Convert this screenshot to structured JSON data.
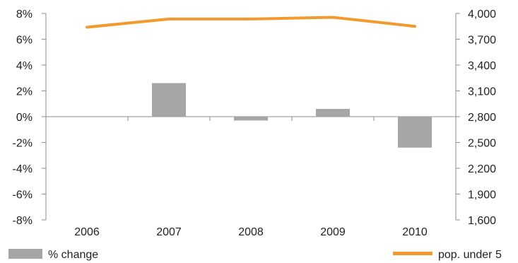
{
  "chart_data": {
    "type": "bar+line",
    "categories": [
      "2006",
      "2007",
      "2008",
      "2009",
      "2010"
    ],
    "series": [
      {
        "name": "% change",
        "type": "bar",
        "axis": "left",
        "values": [
          0,
          2.6,
          -0.3,
          0.6,
          -2.4
        ],
        "color": "#a6a6a6"
      },
      {
        "name": "pop. under 5",
        "type": "line",
        "axis": "right",
        "values": [
          3840,
          3935,
          3935,
          3955,
          3850
        ],
        "color": "#f39a2e"
      }
    ],
    "y_left": {
      "range": [
        -8,
        8
      ],
      "ticks": [
        8,
        6,
        4,
        2,
        0,
        -2,
        -4,
        -6,
        -8
      ],
      "tick_labels": [
        "8%",
        "6%",
        "4%",
        "2%",
        "0%",
        "-2%",
        "-4%",
        "-6%",
        "-8%"
      ]
    },
    "y_right": {
      "range": [
        1600,
        4000
      ],
      "ticks": [
        4000,
        3700,
        3400,
        3100,
        2800,
        2500,
        2200,
        1900,
        1600
      ],
      "tick_labels": [
        "4,000",
        "3,700",
        "3,400",
        "3,100",
        "2,800",
        "2,500",
        "2,200",
        "1,900",
        "1,600"
      ]
    },
    "grid": false,
    "legend": "bottom",
    "title": "",
    "xlabel": "",
    "ylabel": ""
  }
}
